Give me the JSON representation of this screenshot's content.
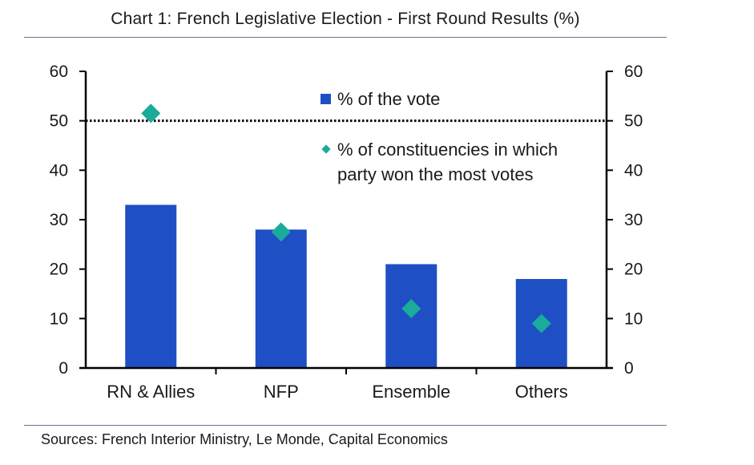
{
  "chart_data": {
    "type": "bar",
    "title": "Chart 1: French Legislative Election - First Round Results (%)",
    "categories": [
      "RN & Allies",
      "NFP",
      "Ensemble",
      "Others"
    ],
    "series": [
      {
        "name": "% of the vote",
        "kind": "bar",
        "values": [
          33,
          28,
          21,
          18
        ]
      },
      {
        "name": "% of constituencies in which party won the most votes",
        "kind": "marker",
        "values": [
          51.5,
          27.5,
          12,
          9
        ]
      }
    ],
    "legend": {
      "bar_label": "% of the vote",
      "marker_label_line1": "% of constituencies in which",
      "marker_label_line2": "party won the most votes"
    },
    "reference_line": {
      "value": 50,
      "style": "dotted"
    },
    "ylim": [
      0,
      60
    ],
    "yticks": [
      0,
      10,
      20,
      30,
      40,
      50,
      60
    ],
    "ylim_right": [
      0,
      60
    ],
    "xlabel": "",
    "ylabel": "",
    "colors": {
      "bar": "#1f4fc4",
      "marker": "#1aab9b",
      "axis": "#000000"
    }
  },
  "source": "Sources: French Interior Ministry, Le Monde, Capital Economics"
}
